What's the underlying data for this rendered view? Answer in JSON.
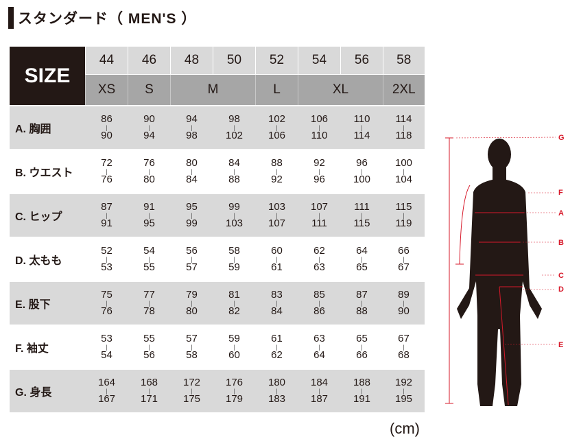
{
  "title": "スタンダード（ MEN'S ）",
  "header": {
    "size_label": "SIZE",
    "numbers": [
      "44",
      "46",
      "48",
      "50",
      "52",
      "54",
      "56",
      "58"
    ],
    "labels": [
      {
        "t": "XS",
        "span": 1
      },
      {
        "t": "S",
        "span": 1
      },
      {
        "t": "M",
        "span": 2
      },
      {
        "t": "L",
        "span": 1
      },
      {
        "t": "XL",
        "span": 2
      },
      {
        "t": "2XL",
        "span": 1
      }
    ]
  },
  "rows": [
    {
      "label": "A. 胸囲",
      "vals": [
        [
          "86",
          "90"
        ],
        [
          "90",
          "94"
        ],
        [
          "94",
          "98"
        ],
        [
          "98",
          "102"
        ],
        [
          "102",
          "106"
        ],
        [
          "106",
          "110"
        ],
        [
          "110",
          "114"
        ],
        [
          "114",
          "118"
        ]
      ]
    },
    {
      "label": "B. ウエスト",
      "vals": [
        [
          "72",
          "76"
        ],
        [
          "76",
          "80"
        ],
        [
          "80",
          "84"
        ],
        [
          "84",
          "88"
        ],
        [
          "88",
          "92"
        ],
        [
          "92",
          "96"
        ],
        [
          "96",
          "100"
        ],
        [
          "100",
          "104"
        ]
      ]
    },
    {
      "label": "C. ヒップ",
      "vals": [
        [
          "87",
          "91"
        ],
        [
          "91",
          "95"
        ],
        [
          "95",
          "99"
        ],
        [
          "99",
          "103"
        ],
        [
          "103",
          "107"
        ],
        [
          "107",
          "111"
        ],
        [
          "111",
          "115"
        ],
        [
          "115",
          "119"
        ]
      ]
    },
    {
      "label": "D. 太もも",
      "vals": [
        [
          "52",
          "53"
        ],
        [
          "54",
          "55"
        ],
        [
          "56",
          "57"
        ],
        [
          "58",
          "59"
        ],
        [
          "60",
          "61"
        ],
        [
          "62",
          "63"
        ],
        [
          "64",
          "65"
        ],
        [
          "66",
          "67"
        ]
      ]
    },
    {
      "label": "E. 股下",
      "vals": [
        [
          "75",
          "76"
        ],
        [
          "77",
          "78"
        ],
        [
          "79",
          "80"
        ],
        [
          "81",
          "82"
        ],
        [
          "83",
          "84"
        ],
        [
          "85",
          "86"
        ],
        [
          "87",
          "88"
        ],
        [
          "89",
          "90"
        ]
      ]
    },
    {
      "label": "F. 袖丈",
      "vals": [
        [
          "53",
          "54"
        ],
        [
          "55",
          "56"
        ],
        [
          "57",
          "58"
        ],
        [
          "59",
          "60"
        ],
        [
          "61",
          "62"
        ],
        [
          "63",
          "64"
        ],
        [
          "65",
          "66"
        ],
        [
          "67",
          "68"
        ]
      ]
    },
    {
      "label": "G. 身長",
      "vals": [
        [
          "164",
          "167"
        ],
        [
          "168",
          "171"
        ],
        [
          "172",
          "175"
        ],
        [
          "176",
          "179"
        ],
        [
          "180",
          "183"
        ],
        [
          "184",
          "187"
        ],
        [
          "188",
          "191"
        ],
        [
          "192",
          "195"
        ]
      ]
    }
  ],
  "unit": "(cm)",
  "figure": {
    "markers": [
      "G",
      "F",
      "A",
      "B",
      "C",
      "D",
      "E"
    ],
    "accent": "#d7192a",
    "silhouette": "#231815"
  }
}
